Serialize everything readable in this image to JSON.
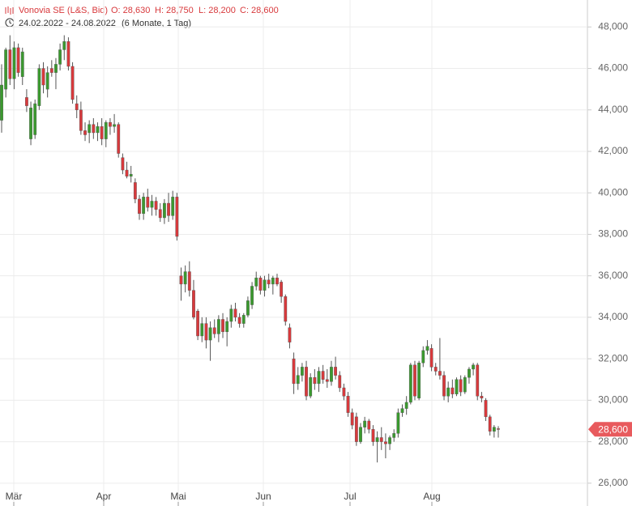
{
  "chart_data": {
    "type": "candlestick",
    "title": "Vonovia SE (L&S, Bid)",
    "ohlc_labels": [
      "O: 28,630",
      "H: 28,750",
      "L: 28,200",
      "C: 28,600"
    ],
    "date_range": "24.02.2022 - 24.08.2022",
    "period": "(6 Monate, 1 Tag)",
    "price_label": "28,600",
    "up_color": "#3a9a2e",
    "down_color": "#d8393c",
    "grid": true,
    "categories": [
      "Mär",
      "Apr",
      "Mai",
      "Jun",
      "Jul",
      "Aug"
    ],
    "ylim": [
      24900,
      49300
    ],
    "yticks": [
      {
        "value": 26000,
        "label": "26,000"
      },
      {
        "value": 28000,
        "label": "28,000"
      },
      {
        "value": 30000,
        "label": "30,000"
      },
      {
        "value": 32000,
        "label": "32,000"
      },
      {
        "value": 34000,
        "label": "34,000"
      },
      {
        "value": 36000,
        "label": "36,000"
      },
      {
        "value": 38000,
        "label": "38,000"
      },
      {
        "value": 40000,
        "label": "40,000"
      },
      {
        "value": 42000,
        "label": "42,000"
      },
      {
        "value": 44000,
        "label": "44,000"
      },
      {
        "value": 46000,
        "label": "46,000"
      },
      {
        "value": 48000,
        "label": "48,000"
      }
    ],
    "candles": [
      [
        43500,
        46200,
        42900,
        45200
      ],
      [
        45000,
        47000,
        44600,
        46900
      ],
      [
        46900,
        47600,
        45200,
        45500
      ],
      [
        45500,
        47300,
        45000,
        47000
      ],
      [
        47000,
        47200,
        45600,
        45800
      ],
      [
        45600,
        47000,
        45200,
        46800
      ],
      [
        44600,
        45000,
        43900,
        44200
      ],
      [
        42600,
        44400,
        42300,
        44100
      ],
      [
        42800,
        44500,
        42600,
        44300
      ],
      [
        44200,
        46200,
        44000,
        46000
      ],
      [
        46000,
        46300,
        44800,
        45200
      ],
      [
        45000,
        46100,
        44600,
        45800
      ],
      [
        46000,
        46400,
        45600,
        45800
      ],
      [
        45800,
        46500,
        45000,
        46200
      ],
      [
        46200,
        47200,
        45900,
        46900
      ],
      [
        46900,
        47600,
        46400,
        47300
      ],
      [
        47300,
        47500,
        45900,
        46100
      ],
      [
        46100,
        46300,
        44300,
        44500
      ],
      [
        44300,
        44700,
        43600,
        44000
      ],
      [
        44000,
        44400,
        42800,
        43000
      ],
      [
        43000,
        43400,
        42500,
        42800
      ],
      [
        42900,
        43500,
        42400,
        43300
      ],
      [
        43300,
        43600,
        42600,
        42900
      ],
      [
        42900,
        43400,
        42500,
        43200
      ],
      [
        43200,
        43600,
        42300,
        42600
      ],
      [
        42600,
        43500,
        42200,
        43400
      ],
      [
        43400,
        43600,
        42800,
        43200
      ],
      [
        43200,
        43800,
        42900,
        43300
      ],
      [
        43300,
        43400,
        41700,
        41900
      ],
      [
        41700,
        41900,
        40900,
        41100
      ],
      [
        41100,
        41500,
        40700,
        40800
      ],
      [
        40800,
        41300,
        40500,
        40900
      ],
      [
        40500,
        40700,
        39500,
        39700
      ],
      [
        39700,
        39900,
        38700,
        39000
      ],
      [
        39000,
        40000,
        38700,
        39800
      ],
      [
        39800,
        40200,
        39100,
        39300
      ],
      [
        39300,
        39900,
        38900,
        39600
      ],
      [
        39600,
        39800,
        38900,
        39200
      ],
      [
        39200,
        39500,
        38600,
        38800
      ],
      [
        38800,
        39700,
        38500,
        39500
      ],
      [
        39500,
        40000,
        38600,
        38900
      ],
      [
        38900,
        40100,
        38700,
        39800
      ],
      [
        39800,
        40000,
        37700,
        37900
      ],
      [
        36000,
        36400,
        34800,
        35600
      ],
      [
        35600,
        36500,
        35200,
        36200
      ],
      [
        36200,
        36700,
        35000,
        35300
      ],
      [
        35300,
        35800,
        33900,
        34000
      ],
      [
        34300,
        34400,
        32900,
        33100
      ],
      [
        33100,
        34000,
        32800,
        33700
      ],
      [
        33700,
        34000,
        32500,
        32900
      ],
      [
        32900,
        33800,
        31900,
        33500
      ],
      [
        33500,
        33900,
        33000,
        33200
      ],
      [
        33200,
        34100,
        32800,
        33900
      ],
      [
        33900,
        34200,
        33000,
        33300
      ],
      [
        33300,
        34000,
        32600,
        33800
      ],
      [
        33800,
        34600,
        33500,
        34400
      ],
      [
        34400,
        34700,
        33800,
        34000
      ],
      [
        34000,
        34200,
        33500,
        33700
      ],
      [
        33700,
        34200,
        33500,
        34100
      ],
      [
        34100,
        35000,
        34000,
        34800
      ],
      [
        34600,
        35700,
        34400,
        35500
      ],
      [
        35500,
        36200,
        35300,
        35900
      ],
      [
        35900,
        36000,
        35100,
        35300
      ],
      [
        35300,
        36000,
        35000,
        35800
      ],
      [
        35800,
        36100,
        35400,
        35600
      ],
      [
        35600,
        36000,
        35100,
        35900
      ],
      [
        35900,
        36100,
        35500,
        35600
      ],
      [
        35700,
        35800,
        34700,
        35000
      ],
      [
        35000,
        35100,
        33600,
        33800
      ],
      [
        33500,
        33700,
        32500,
        32800
      ],
      [
        32000,
        32300,
        30300,
        30800
      ],
      [
        30800,
        31600,
        30500,
        31200
      ],
      [
        31200,
        31800,
        30900,
        31600
      ],
      [
        31600,
        31900,
        30000,
        30200
      ],
      [
        30200,
        31300,
        30100,
        31100
      ],
      [
        31100,
        31500,
        30500,
        30800
      ],
      [
        30800,
        31600,
        30400,
        31400
      ],
      [
        31400,
        31700,
        30800,
        31000
      ],
      [
        31000,
        31500,
        30600,
        30900
      ],
      [
        30900,
        31900,
        30700,
        31600
      ],
      [
        31600,
        32100,
        31000,
        31200
      ],
      [
        31200,
        31400,
        30400,
        30600
      ],
      [
        30600,
        30800,
        30000,
        30200
      ],
      [
        30200,
        30400,
        29200,
        29400
      ],
      [
        29400,
        29600,
        28600,
        28800
      ],
      [
        29200,
        29400,
        27800,
        28000
      ],
      [
        28000,
        28900,
        27900,
        28700
      ],
      [
        28700,
        29200,
        28400,
        29000
      ],
      [
        29000,
        29100,
        28400,
        28600
      ],
      [
        28600,
        28800,
        27800,
        28000
      ],
      [
        28000,
        28500,
        27000,
        28200
      ],
      [
        28200,
        28700,
        27600,
        28000
      ],
      [
        28000,
        28400,
        27200,
        27900
      ],
      [
        27900,
        28300,
        27600,
        28200
      ],
      [
        28200,
        28600,
        28000,
        28400
      ],
      [
        28400,
        29600,
        28200,
        29400
      ],
      [
        29400,
        29800,
        29200,
        29600
      ],
      [
        29600,
        30200,
        29300,
        29900
      ],
      [
        29900,
        31800,
        29800,
        31700
      ],
      [
        31700,
        31900,
        30000,
        30200
      ],
      [
        30100,
        31900,
        30000,
        31800
      ],
      [
        31800,
        32600,
        31600,
        32400
      ],
      [
        32400,
        32900,
        32200,
        32600
      ],
      [
        32500,
        32700,
        31400,
        31600
      ],
      [
        31600,
        31800,
        31200,
        31400
      ],
      [
        31400,
        33000,
        31000,
        31200
      ],
      [
        31200,
        31400,
        30000,
        30200
      ],
      [
        30200,
        30900,
        29900,
        30600
      ],
      [
        30600,
        31000,
        30100,
        30300
      ],
      [
        30300,
        31100,
        30200,
        31000
      ],
      [
        31000,
        31200,
        30200,
        30400
      ],
      [
        30400,
        31200,
        30300,
        31100
      ],
      [
        31100,
        31600,
        30800,
        31500
      ],
      [
        31500,
        31800,
        31200,
        31700
      ],
      [
        31700,
        31800,
        30000,
        30200
      ],
      [
        30200,
        30400,
        29900,
        30100
      ],
      [
        30000,
        30100,
        29000,
        29200
      ],
      [
        29200,
        29300,
        28300,
        28500
      ],
      [
        28500,
        28800,
        28200,
        28700
      ],
      [
        28630,
        28750,
        28200,
        28600
      ]
    ]
  }
}
